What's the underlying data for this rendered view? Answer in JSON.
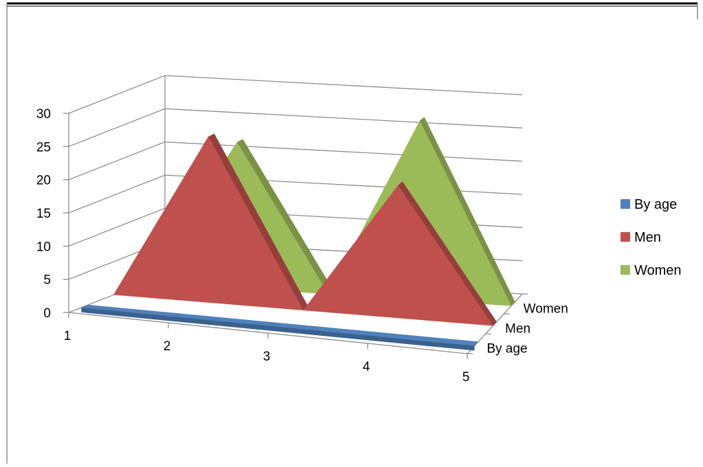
{
  "chart_data": {
    "type": "area",
    "categories": [
      "1",
      "2",
      "3",
      "4",
      "5"
    ],
    "series": [
      {
        "name": "By age",
        "values": [
          0,
          0,
          0,
          0,
          0
        ]
      },
      {
        "name": "Men",
        "values": [
          0,
          25,
          0,
          20,
          0
        ]
      },
      {
        "name": "Women",
        "values": [
          0,
          22,
          0,
          27,
          0
        ]
      }
    ],
    "title": "",
    "xlabel": "",
    "ylabel": "",
    "ylim": [
      0,
      30
    ],
    "yticks": [
      "0",
      "5",
      "10",
      "15",
      "20",
      "25",
      "30"
    ],
    "depth_labels": [
      "By age",
      "Men",
      "Women"
    ],
    "grid": true,
    "legend_position": "right",
    "three_d": true,
    "colors": {
      "By age": "#4f81bd",
      "Men": "#c0504d",
      "Women": "#9bbb59"
    }
  }
}
